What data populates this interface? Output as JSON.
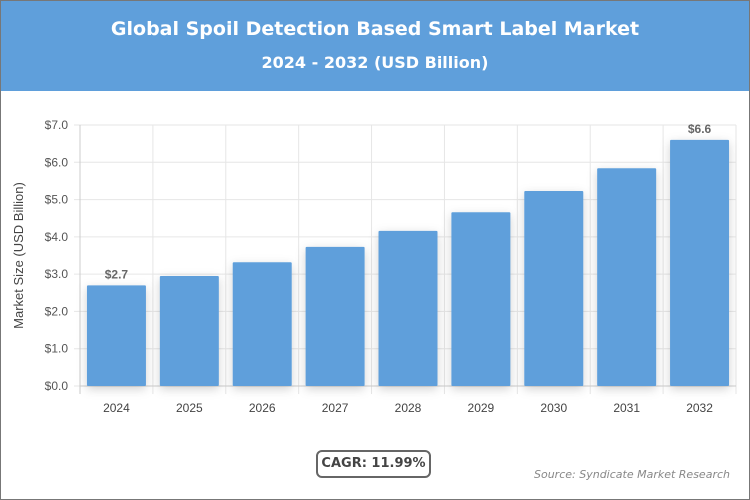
{
  "header": {
    "title": "Global Spoil Detection Based Smart Label Market",
    "subtitle": "2024 - 2032 (USD Billion)"
  },
  "chart_data": {
    "type": "bar",
    "title": "Global Spoil Detection Based Smart Label Market",
    "subtitle": "2024 - 2032 (USD Billion)",
    "categories": [
      "2024",
      "2025",
      "2026",
      "2027",
      "2028",
      "2029",
      "2030",
      "2031",
      "2032"
    ],
    "values": [
      2.7,
      2.95,
      3.32,
      3.73,
      4.16,
      4.66,
      5.23,
      5.84,
      6.6
    ],
    "data_labels": {
      "0": "$2.7",
      "8": "$6.6"
    },
    "ylabel": "Market Size (USD Billion)",
    "xlabel": "",
    "ylim": [
      0,
      7
    ],
    "yticks": [
      "$0.0",
      "$1.0",
      "$2.0",
      "$3.0",
      "$4.0",
      "$5.0",
      "$6.0",
      "$7.0"
    ],
    "grid": true,
    "bar_color": "#5f9fdb"
  },
  "footer": {
    "cagr": "CAGR: 11.99%",
    "source": "Source: Syndicate Market Research"
  }
}
